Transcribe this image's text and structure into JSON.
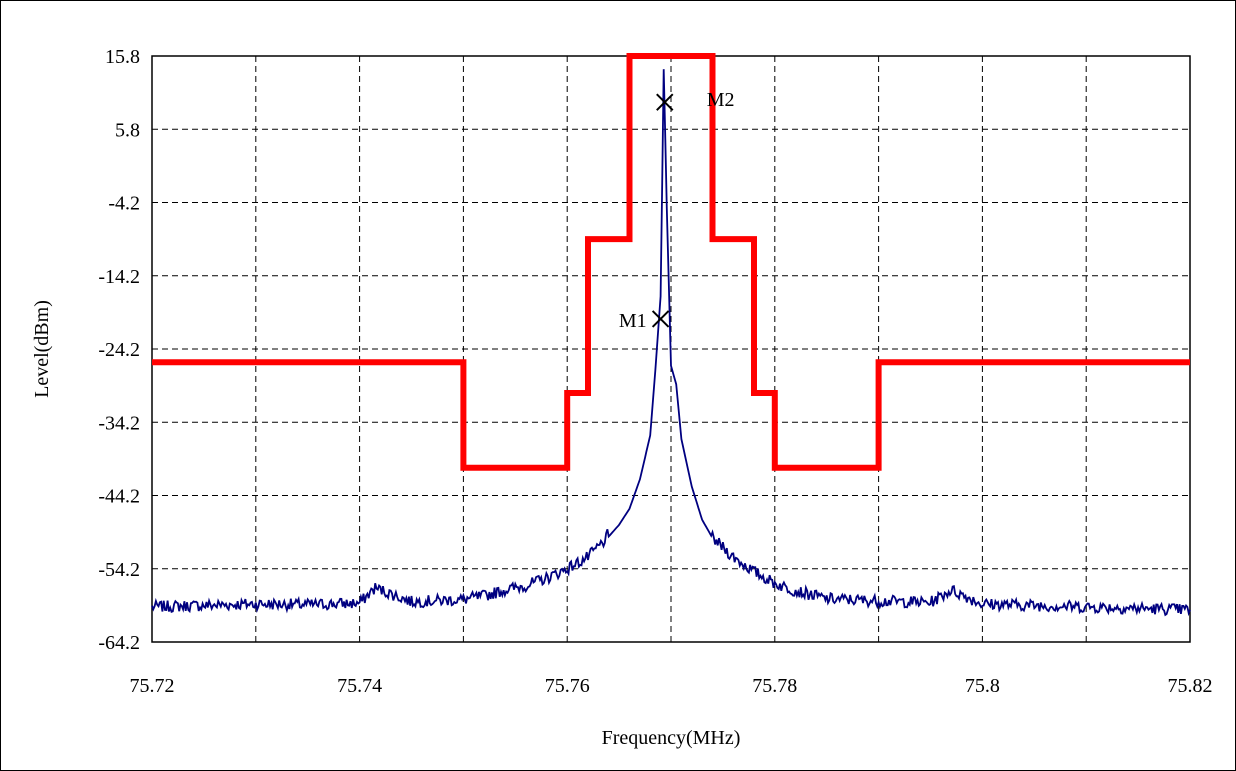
{
  "chart_data": {
    "type": "line",
    "xlabel": "Frequency(MHz)",
    "ylabel": "Level(dBm)",
    "xlim": [
      75.72,
      75.82
    ],
    "ylim": [
      -64.2,
      15.8
    ],
    "x_ticks": [
      "75.72",
      "75.74",
      "75.76",
      "75.78",
      "75.8",
      "75.82"
    ],
    "y_ticks": [
      "15.8",
      "5.8",
      "-4.2",
      "-14.2",
      "-24.2",
      "-34.2",
      "-44.2",
      "-54.2",
      "-64.2"
    ],
    "grid": true,
    "colors": {
      "mask": "#ff0000",
      "spectrum": "#000080",
      "marker": "#000000"
    },
    "series": [
      {
        "role": "mask",
        "x": [
          75.72,
          75.75,
          75.75,
          75.76,
          75.76,
          75.762,
          75.762,
          75.766,
          75.766,
          75.774,
          75.774,
          75.778,
          75.778,
          75.78,
          75.78,
          75.79,
          75.79,
          75.82
        ],
        "y": [
          -26,
          -26,
          -40.4,
          -40.4,
          -30.2,
          -30.2,
          -9.2,
          -9.2,
          15.8,
          15.8,
          -9.2,
          -9.2,
          -30.2,
          -30.2,
          -40.4,
          -40.4,
          -26,
          -26
        ]
      },
      {
        "role": "spectrum",
        "x": [
          75.72,
          75.725,
          75.73,
          75.735,
          75.74,
          75.7415,
          75.745,
          75.75,
          75.752,
          75.754,
          75.756,
          75.758,
          75.76,
          75.762,
          75.764,
          75.765,
          75.766,
          75.767,
          75.768,
          75.7685,
          75.769,
          75.7693,
          75.7696,
          75.77,
          75.7705,
          75.771,
          75.772,
          75.773,
          75.774,
          75.776,
          75.778,
          75.78,
          75.782,
          75.785,
          75.79,
          75.795,
          75.797,
          75.8,
          75.805,
          75.81,
          75.815,
          75.82
        ],
        "y": [
          -59.4,
          -59.2,
          -59.0,
          -59.1,
          -58.9,
          -56.8,
          -58.7,
          -58.4,
          -57.9,
          -57.1,
          -56.5,
          -55.5,
          -54.2,
          -52.6,
          -49.8,
          -48.2,
          -46.0,
          -42.0,
          -36.0,
          -27.0,
          -17.0,
          14.0,
          -5.0,
          -26.5,
          -29.0,
          -36.5,
          -43.0,
          -47.5,
          -50.0,
          -52.6,
          -54.6,
          -56.2,
          -57.2,
          -58.3,
          -58.6,
          -58.8,
          -57.1,
          -59.0,
          -59.2,
          -59.4,
          -59.6,
          -59.8
        ]
      }
    ],
    "markers": [
      {
        "label": "M1",
        "x": 75.769,
        "y": -20.1
      },
      {
        "label": "M2",
        "x": 75.7694,
        "y": 9.5
      }
    ]
  }
}
